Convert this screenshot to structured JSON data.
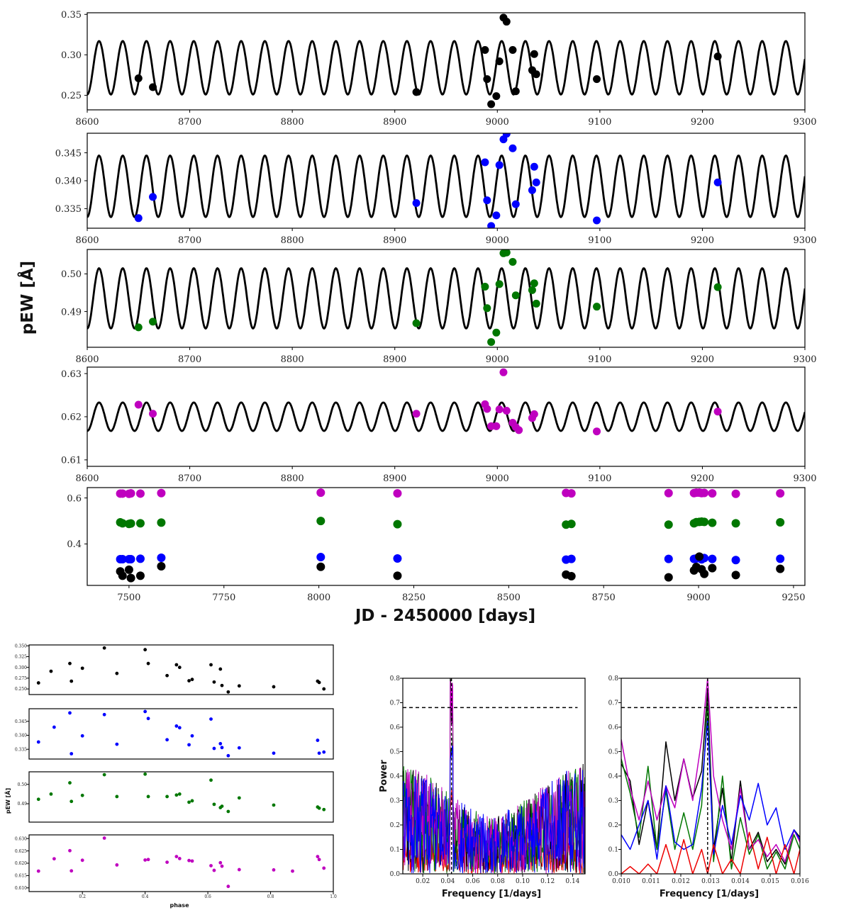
{
  "labels": {
    "top_ylabel": "pEW [Å]",
    "top_xlabel": "JD - 2450000 [days]",
    "phase_ylabel": "pEW [Å]",
    "phase_xlabel": "phase",
    "power_ylabel": "Power",
    "freq_xlabel": "Frequency [1/days]"
  },
  "colors": {
    "black": "#000000",
    "blue": "#0000ff",
    "green": "#007700",
    "magenta": "#bf00bf",
    "red": "#ee0000"
  },
  "chart_data": [
    {
      "type": "scatter",
      "panel": "a",
      "color": "black",
      "xlim": [
        8600,
        9300
      ],
      "ylim": [
        0.232,
        0.352
      ],
      "xticks": [
        8600,
        8700,
        8800,
        8900,
        9000,
        9100,
        9200,
        9300
      ],
      "yticks": [
        0.25,
        0.3,
        0.35
      ],
      "ytick_labels": [
        "0.25",
        "0.30",
        "0.35"
      ],
      "model": {
        "period_days": 23.1,
        "phase_at_8600": 0.75,
        "mean": 0.284,
        "amplitude": 0.033
      },
      "x": [
        8650,
        8664,
        8921,
        8988,
        8990,
        8994,
        8999,
        9002,
        9006,
        9009,
        9015,
        9018,
        9034,
        9036,
        9038,
        9097,
        9215
      ],
      "y": [
        0.271,
        0.26,
        0.254,
        0.306,
        0.27,
        0.239,
        0.249,
        0.292,
        0.346,
        0.341,
        0.306,
        0.255,
        0.281,
        0.301,
        0.276,
        0.27,
        0.298
      ]
    },
    {
      "type": "scatter",
      "panel": "b",
      "color": "blue",
      "xlim": [
        8600,
        9300
      ],
      "ylim": [
        0.3315,
        0.3485
      ],
      "xticks": [
        8600,
        8700,
        8800,
        8900,
        9000,
        9100,
        9200,
        9300
      ],
      "yticks": [
        0.335,
        0.34,
        0.345
      ],
      "ytick_labels": [
        "0.335",
        "0.340",
        "0.345"
      ],
      "model": {
        "period_days": 23.1,
        "phase_at_8600": 0.75,
        "mean": 0.339,
        "amplitude": 0.0055
      },
      "x": [
        8650,
        8664,
        8921,
        8988,
        8990,
        8994,
        8999,
        9002,
        9006,
        9009,
        9015,
        9018,
        9034,
        9036,
        9038,
        9097,
        9215
      ],
      "y": [
        0.3333,
        0.3371,
        0.336,
        0.3433,
        0.3365,
        0.3319,
        0.3338,
        0.3428,
        0.3474,
        0.3484,
        0.3458,
        0.3358,
        0.3383,
        0.3425,
        0.3397,
        0.3329,
        0.3397
      ]
    },
    {
      "type": "scatter",
      "panel": "c",
      "color": "green",
      "xlim": [
        8600,
        9300
      ],
      "ylim": [
        0.4805,
        0.5065
      ],
      "xticks": [
        8600,
        8700,
        8800,
        8900,
        9000,
        9100,
        9200,
        9300
      ],
      "yticks": [
        0.49,
        0.5
      ],
      "ytick_labels": [
        "0.49",
        "0.50"
      ],
      "model": {
        "period_days": 23.1,
        "phase_at_8600": 0.75,
        "mean": 0.4935,
        "amplitude": 0.008
      },
      "x": [
        8650,
        8664,
        8921,
        8988,
        8990,
        8994,
        8999,
        9002,
        9006,
        9009,
        9015,
        9018,
        9034,
        9036,
        9038,
        9097,
        9215
      ],
      "y": [
        0.4858,
        0.4873,
        0.4869,
        0.4966,
        0.4909,
        0.4819,
        0.4844,
        0.4973,
        0.5055,
        0.5057,
        0.5032,
        0.4943,
        0.4957,
        0.4975,
        0.4921,
        0.4913,
        0.4965
      ]
    },
    {
      "type": "scatter",
      "panel": "d",
      "color": "magenta",
      "xlim": [
        8600,
        9300
      ],
      "ylim": [
        0.6085,
        0.6315
      ],
      "xticks": [
        8600,
        8700,
        8800,
        8900,
        9000,
        9100,
        9200,
        9300
      ],
      "yticks": [
        0.61,
        0.62,
        0.63
      ],
      "ytick_labels": [
        "0.61",
        "0.62",
        "0.63"
      ],
      "model": {
        "period_days": 23.1,
        "phase_at_8600": 0.75,
        "mean": 0.62,
        "amplitude": 0.0033
      },
      "x": [
        8650,
        8664,
        8921,
        8988,
        8990,
        8994,
        8999,
        9002,
        9006,
        9009,
        9015,
        9018,
        9021,
        9034,
        9036,
        9097,
        9215
      ],
      "y": [
        0.6228,
        0.6207,
        0.6207,
        0.6229,
        0.6218,
        0.6178,
        0.6178,
        0.6217,
        0.6303,
        0.6214,
        0.6186,
        0.6176,
        0.6169,
        0.6197,
        0.6206,
        0.6166,
        0.6212
      ]
    },
    {
      "type": "scatter",
      "panel": "e",
      "xlim": [
        7390,
        9280
      ],
      "ylim": [
        0.22,
        0.645
      ],
      "xticks": [
        7500,
        7750,
        8000,
        8250,
        8500,
        8750,
        9000,
        9250
      ],
      "yticks": [
        0.4,
        0.6
      ],
      "ytick_labels": [
        "0.4",
        "0.6"
      ],
      "x": [
        7477,
        7483,
        7500,
        7505,
        7530,
        7585,
        8005,
        8207,
        8651,
        8665,
        8921,
        8988,
        8994,
        9002,
        9008,
        9015,
        9036,
        9098,
        9215
      ],
      "series": [
        {
          "color": "magenta",
          "y": [
            0.619,
            0.619,
            0.618,
            0.62,
            0.619,
            0.621,
            0.623,
            0.62,
            0.622,
            0.62,
            0.621,
            0.621,
            0.623,
            0.623,
            0.621,
            0.622,
            0.62,
            0.618,
            0.62
          ]
        },
        {
          "color": "green",
          "y": [
            0.494,
            0.49,
            0.487,
            0.489,
            0.49,
            0.493,
            0.5,
            0.486,
            0.484,
            0.487,
            0.484,
            0.49,
            0.495,
            0.496,
            0.497,
            0.496,
            0.492,
            0.49,
            0.494
          ]
        },
        {
          "color": "blue",
          "y": [
            0.334,
            0.334,
            0.334,
            0.334,
            0.336,
            0.34,
            0.343,
            0.337,
            0.332,
            0.335,
            0.335,
            0.335,
            0.337,
            0.34,
            0.333,
            0.339,
            0.335,
            0.33,
            0.336
          ]
        },
        {
          "color": "black",
          "y": [
            0.281,
            0.262,
            0.288,
            0.252,
            0.262,
            0.303,
            0.301,
            0.262,
            0.267,
            0.26,
            0.255,
            0.285,
            0.3,
            0.345,
            0.29,
            0.27,
            0.295,
            0.265,
            0.292
          ]
        }
      ]
    },
    {
      "type": "scatter",
      "panel": "phase-black",
      "color": "black",
      "xlim": [
        0.03,
        1.0
      ],
      "ylim": [
        0.237,
        0.352
      ],
      "xticks": [],
      "yticks": [
        0.25,
        0.275,
        0.3,
        0.325,
        0.35
      ],
      "ytick_labels": [
        "0.250",
        "0.275",
        "0.300",
        "0.325",
        "0.350"
      ],
      "x": [
        0.06,
        0.1,
        0.16,
        0.165,
        0.2,
        0.27,
        0.31,
        0.4,
        0.41,
        0.47,
        0.5,
        0.51,
        0.54,
        0.55,
        0.61,
        0.62,
        0.64,
        0.645,
        0.665,
        0.7,
        0.81,
        0.95,
        0.955,
        0.97
      ],
      "y": [
        0.264,
        0.291,
        0.309,
        0.268,
        0.298,
        0.345,
        0.286,
        0.341,
        0.309,
        0.281,
        0.306,
        0.3,
        0.269,
        0.272,
        0.306,
        0.266,
        0.296,
        0.258,
        0.243,
        0.257,
        0.255,
        0.268,
        0.265,
        0.25
      ]
    },
    {
      "type": "scatter",
      "panel": "phase-blue",
      "color": "blue",
      "xlim": [
        0.03,
        1.0
      ],
      "ylim": [
        0.3315,
        0.3495
      ],
      "xticks": [],
      "yticks": [
        0.335,
        0.34,
        0.345
      ],
      "ytick_labels": [
        "0.335",
        "0.340",
        "0.345"
      ],
      "x": [
        0.06,
        0.11,
        0.16,
        0.165,
        0.2,
        0.27,
        0.31,
        0.4,
        0.41,
        0.47,
        0.5,
        0.51,
        0.54,
        0.55,
        0.61,
        0.62,
        0.64,
        0.645,
        0.665,
        0.7,
        0.81,
        0.95,
        0.955,
        0.97
      ],
      "y": [
        0.3376,
        0.3429,
        0.348,
        0.3334,
        0.3398,
        0.3474,
        0.3368,
        0.3485,
        0.346,
        0.3384,
        0.3433,
        0.3427,
        0.3366,
        0.3398,
        0.3458,
        0.3353,
        0.337,
        0.3356,
        0.3327,
        0.3355,
        0.3336,
        0.3382,
        0.3336,
        0.334
      ]
    },
    {
      "type": "scatter",
      "panel": "phase-green",
      "color": "green",
      "xlim": [
        0.03,
        1.0
      ],
      "ylim": [
        0.4805,
        0.5065
      ],
      "xticks": [],
      "yticks": [
        0.49,
        0.5
      ],
      "ytick_labels": [
        "0.49",
        "0.50"
      ],
      "x": [
        0.06,
        0.1,
        0.16,
        0.165,
        0.2,
        0.27,
        0.31,
        0.4,
        0.41,
        0.47,
        0.5,
        0.51,
        0.54,
        0.55,
        0.61,
        0.62,
        0.64,
        0.645,
        0.665,
        0.7,
        0.81,
        0.95,
        0.955,
        0.97
      ],
      "y": [
        0.4923,
        0.495,
        0.5008,
        0.4912,
        0.4943,
        0.505,
        0.4937,
        0.5053,
        0.4937,
        0.4937,
        0.4945,
        0.495,
        0.4908,
        0.4915,
        0.5022,
        0.4897,
        0.488,
        0.4887,
        0.486,
        0.493,
        0.4893,
        0.4883,
        0.4877,
        0.487
      ]
    },
    {
      "type": "scatter",
      "panel": "phase-magenta",
      "color": "magenta",
      "xlim": [
        0.03,
        1.0
      ],
      "ylim": [
        0.6085,
        0.6315
      ],
      "xticks": [
        0.2,
        0.4,
        0.6,
        0.8,
        1.0
      ],
      "xtick_labels": [
        "0.2",
        "0.4",
        "0.6",
        "0.8",
        "1.0"
      ],
      "yticks": [
        0.61,
        0.615,
        0.62,
        0.625,
        0.63
      ],
      "ytick_labels": [
        "0.610",
        "0.615",
        "0.620",
        "0.625",
        "0.630"
      ],
      "x": [
        0.06,
        0.11,
        0.16,
        0.165,
        0.2,
        0.27,
        0.31,
        0.4,
        0.41,
        0.47,
        0.5,
        0.51,
        0.54,
        0.55,
        0.61,
        0.62,
        0.64,
        0.645,
        0.665,
        0.7,
        0.81,
        0.87,
        0.95,
        0.955,
        0.97
      ],
      "y": [
        0.6168,
        0.6218,
        0.6251,
        0.6169,
        0.6212,
        0.6302,
        0.6193,
        0.6213,
        0.6215,
        0.6204,
        0.6227,
        0.6219,
        0.6211,
        0.6209,
        0.619,
        0.6171,
        0.6202,
        0.6188,
        0.6106,
        0.6174,
        0.6173,
        0.6168,
        0.6227,
        0.6215,
        0.618
      ]
    },
    {
      "type": "line",
      "panel": "periodogram-wide",
      "xlim": [
        0.004,
        0.15
      ],
      "ylim": [
        0,
        0.8
      ],
      "xticks": [
        0.02,
        0.04,
        0.06,
        0.08,
        0.1,
        0.12,
        0.14
      ],
      "xtick_labels": [
        "0.02",
        "0.04",
        "0.06",
        "0.08",
        "0.10",
        "0.12",
        "0.14"
      ],
      "yticks": [
        0.0,
        0.1,
        0.2,
        0.3,
        0.4,
        0.5,
        0.6,
        0.7,
        0.8
      ],
      "ytick_labels": [
        "0.0",
        "0.1",
        "0.2",
        "0.3",
        "0.4",
        "0.5",
        "0.6",
        "0.7",
        "0.8"
      ],
      "threshold": {
        "value": 0.68,
        "x_end": 0.144
      },
      "peak_marker_x": 0.043,
      "series": [
        {
          "color": "red",
          "peak": 0.35,
          "seed": 11
        },
        {
          "color": "black",
          "peak": 0.8,
          "seed": 23
        },
        {
          "color": "green",
          "peak": 0.6,
          "seed": 37
        },
        {
          "color": "magenta",
          "peak": 0.8,
          "seed": 51
        },
        {
          "color": "blue",
          "peak": 0.53,
          "seed": 67
        }
      ]
    },
    {
      "type": "line",
      "panel": "periodogram-zoom",
      "xlim": [
        0.01,
        0.016
      ],
      "ylim": [
        0,
        0.8
      ],
      "xticks": [
        0.01,
        0.011,
        0.012,
        0.013,
        0.014,
        0.015,
        0.016
      ],
      "xtick_labels": [
        "0.010",
        "0.011",
        "0.012",
        "0.013",
        "0.014",
        "0.015",
        "0.016"
      ],
      "yticks": [
        0.0,
        0.1,
        0.2,
        0.3,
        0.4,
        0.5,
        0.6,
        0.7,
        0.8
      ],
      "ytick_labels": [
        "0.0",
        "0.1",
        "0.2",
        "0.3",
        "0.4",
        "0.5",
        "0.6",
        "0.7",
        "0.8"
      ],
      "threshold": {
        "value": 0.68
      },
      "peak_marker_x": 0.0129,
      "series": [
        {
          "color": "black",
          "x": [
            0.01,
            0.0103,
            0.0106,
            0.0109,
            0.0112,
            0.0115,
            0.0118,
            0.0121,
            0.0124,
            0.0127,
            0.0129,
            0.0131,
            0.0134,
            0.0137,
            0.014,
            0.0143,
            0.0146,
            0.0149,
            0.0152,
            0.0155,
            0.0158,
            0.016
          ],
          "y": [
            0.45,
            0.38,
            0.12,
            0.3,
            0.1,
            0.54,
            0.3,
            0.47,
            0.31,
            0.42,
            0.75,
            0.1,
            0.35,
            0.05,
            0.38,
            0.1,
            0.17,
            0.05,
            0.1,
            0.04,
            0.18,
            0.15
          ]
        },
        {
          "color": "green",
          "x": [
            0.01,
            0.0103,
            0.0106,
            0.0109,
            0.0112,
            0.0115,
            0.0118,
            0.0121,
            0.0124,
            0.0127,
            0.0129,
            0.0131,
            0.0134,
            0.0137,
            0.014,
            0.0143,
            0.0146,
            0.0149,
            0.0152,
            0.0155,
            0.0158,
            0.016
          ],
          "y": [
            0.47,
            0.33,
            0.15,
            0.44,
            0.1,
            0.34,
            0.1,
            0.25,
            0.1,
            0.28,
            0.7,
            0.05,
            0.4,
            0.02,
            0.23,
            0.08,
            0.16,
            0.02,
            0.09,
            0.02,
            0.16,
            0.1
          ]
        },
        {
          "color": "magenta",
          "x": [
            0.01,
            0.0103,
            0.0106,
            0.0109,
            0.0112,
            0.0115,
            0.0118,
            0.0121,
            0.0124,
            0.0127,
            0.0129,
            0.0131,
            0.0134,
            0.0137,
            0.014,
            0.0143,
            0.0146,
            0.0149,
            0.0152,
            0.0155,
            0.0158,
            0.016
          ],
          "y": [
            0.55,
            0.35,
            0.22,
            0.38,
            0.22,
            0.36,
            0.27,
            0.47,
            0.3,
            0.55,
            0.8,
            0.4,
            0.22,
            0.1,
            0.35,
            0.1,
            0.14,
            0.07,
            0.12,
            0.05,
            0.18,
            0.13
          ]
        },
        {
          "color": "blue",
          "x": [
            0.01,
            0.0103,
            0.0106,
            0.0109,
            0.0112,
            0.0115,
            0.0118,
            0.0121,
            0.0124,
            0.0127,
            0.0129,
            0.0131,
            0.0134,
            0.0137,
            0.014,
            0.0143,
            0.0146,
            0.0149,
            0.0152,
            0.0155,
            0.0158,
            0.016
          ],
          "y": [
            0.16,
            0.1,
            0.2,
            0.3,
            0.06,
            0.36,
            0.13,
            0.1,
            0.12,
            0.35,
            0.63,
            0.08,
            0.28,
            0.12,
            0.32,
            0.22,
            0.37,
            0.2,
            0.27,
            0.1,
            0.18,
            0.14
          ]
        },
        {
          "color": "red",
          "x": [
            0.01,
            0.0103,
            0.0106,
            0.0109,
            0.0112,
            0.0115,
            0.0118,
            0.0121,
            0.0124,
            0.0127,
            0.0129,
            0.0131,
            0.0134,
            0.0137,
            0.014,
            0.0143,
            0.0146,
            0.0149,
            0.0152,
            0.0155,
            0.0158,
            0.016
          ],
          "y": [
            0.0,
            0.03,
            0.0,
            0.04,
            0.0,
            0.12,
            0.0,
            0.14,
            0.0,
            0.1,
            0.0,
            0.12,
            0.0,
            0.06,
            0.0,
            0.17,
            0.02,
            0.15,
            0.0,
            0.12,
            0.0,
            0.1
          ]
        }
      ]
    }
  ]
}
